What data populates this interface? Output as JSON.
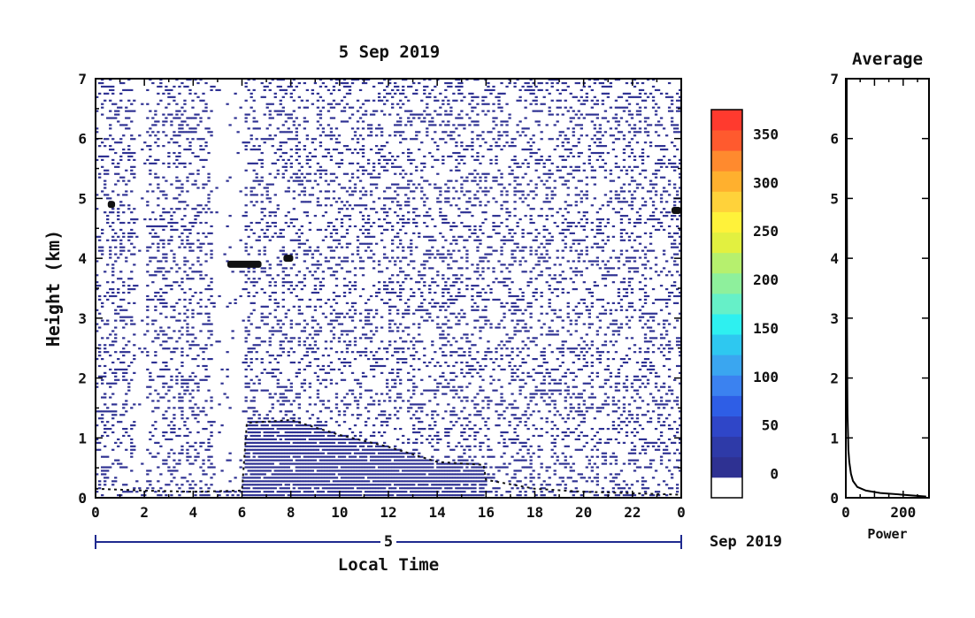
{
  "chart_data": [
    {
      "type": "heatmap",
      "title": "5 Sep 2019",
      "xlabel": "Local Time",
      "ylabel": "Height (km)",
      "x_ticks": [
        "0",
        "2",
        "4",
        "6",
        "8",
        "10",
        "12",
        "14",
        "16",
        "18",
        "20",
        "22",
        "0"
      ],
      "y_ticks": [
        "0",
        "1",
        "2",
        "3",
        "4",
        "5",
        "6",
        "7"
      ],
      "xlim": [
        0,
        24
      ],
      "ylim": [
        0,
        7
      ],
      "date_bar": {
        "day_label": "5",
        "month_label": "Sep 2019"
      },
      "colorbar": {
        "min": -25,
        "max": 375,
        "ticks": [
          "0",
          "50",
          "100",
          "150",
          "200",
          "250",
          "300",
          "350"
        ],
        "colors": [
          "#ffffff",
          "#2e3192",
          "#2e3aa8",
          "#2f46c8",
          "#2e5ee6",
          "#3b82f0",
          "#3aa6f0",
          "#2ec8f0",
          "#2ef0f0",
          "#66f0c8",
          "#8ef09c",
          "#b6f06e",
          "#e2f040",
          "#fff23a",
          "#ffd23a",
          "#ffb02e",
          "#ff8a2e",
          "#ff5a2e",
          "#ff3a2e"
        ]
      },
      "features": {
        "boundary_layer": [
          {
            "x": 0.0,
            "y": 0.15
          },
          {
            "x": 2.0,
            "y": 0.12
          },
          {
            "x": 4.0,
            "y": 0.1
          },
          {
            "x": 6.0,
            "y": 0.12
          },
          {
            "x": 6.2,
            "y": 1.25
          },
          {
            "x": 8.0,
            "y": 1.3
          },
          {
            "x": 10.0,
            "y": 1.05
          },
          {
            "x": 12.0,
            "y": 0.85
          },
          {
            "x": 14.0,
            "y": 0.6
          },
          {
            "x": 15.9,
            "y": 0.55
          },
          {
            "x": 16.0,
            "y": 0.3
          },
          {
            "x": 18.0,
            "y": 0.15
          },
          {
            "x": 20.0,
            "y": 0.1
          },
          {
            "x": 24.0,
            "y": 0.05
          }
        ],
        "cloud_layers": [
          {
            "x_start": 5.4,
            "x_end": 6.8,
            "height": 3.9
          },
          {
            "x_start": 7.7,
            "x_end": 8.1,
            "height": 4.0
          },
          {
            "x_start": 0.5,
            "x_end": 0.8,
            "height": 4.9
          },
          {
            "x_start": 23.6,
            "x_end": 24.0,
            "height": 4.8
          }
        ]
      }
    },
    {
      "type": "line",
      "title": "Average",
      "xlabel": "Power",
      "x_ticks": [
        "0",
        "200"
      ],
      "y_ticks": [
        "0",
        "1",
        "2",
        "3",
        "4",
        "5",
        "6",
        "7"
      ],
      "xlim": [
        0,
        290
      ],
      "ylim": [
        0,
        7
      ],
      "series": [
        {
          "x": [
            280,
            200,
            120,
            70,
            40,
            25,
            18,
            12,
            9,
            8,
            6,
            5,
            4,
            4,
            4,
            3,
            3
          ],
          "y": [
            0.02,
            0.05,
            0.08,
            0.12,
            0.18,
            0.28,
            0.4,
            0.6,
            0.8,
            1.0,
            1.4,
            2.0,
            3.0,
            3.8,
            4.2,
            5.5,
            7.0
          ]
        }
      ]
    }
  ]
}
